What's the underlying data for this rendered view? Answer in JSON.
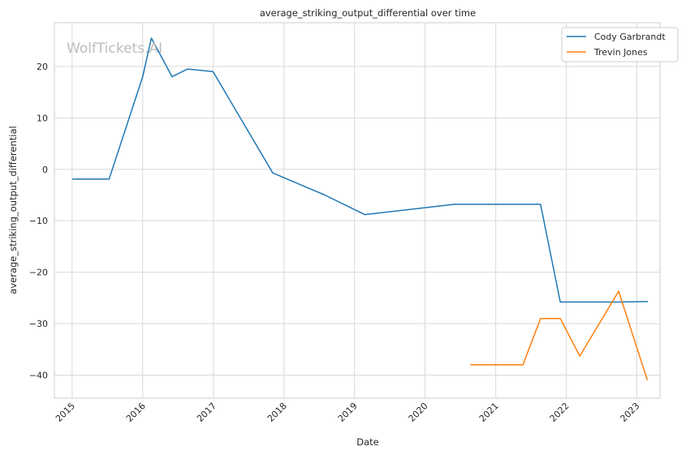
{
  "chart_data": {
    "type": "line",
    "title": "average_striking_output_differential over time",
    "xlabel": "Date",
    "ylabel": "average_striking_output_differential",
    "watermark": "WolfTickets.AI",
    "x_ticks": [
      "2015",
      "2016",
      "2017",
      "2018",
      "2019",
      "2020",
      "2021",
      "2022",
      "2023"
    ],
    "y_ticks": [
      "20",
      "10",
      "0",
      "−10",
      "−20",
      "−30",
      "−40"
    ],
    "y_tick_values": [
      20,
      10,
      0,
      -10,
      -20,
      -30,
      -40
    ],
    "xlim": [
      "2014-10-01",
      "2023-05-01"
    ],
    "ylim": [
      -44.5,
      28.5
    ],
    "grid": true,
    "legend_position": "top-right",
    "series": [
      {
        "name": "Cody Garbrandt",
        "color": "#1f77b4",
        "points": [
          [
            "2015-01-01",
            -1.9
          ],
          [
            "2015-07-11",
            -1.9
          ],
          [
            "2016-01-01",
            18.0
          ],
          [
            "2016-02-15",
            25.5
          ],
          [
            "2016-06-01",
            18.0
          ],
          [
            "2016-08-20",
            19.5
          ],
          [
            "2016-12-30",
            19.0
          ],
          [
            "2017-11-04",
            -0.7
          ],
          [
            "2018-08-01",
            -5.0
          ],
          [
            "2019-02-23",
            -8.8
          ],
          [
            "2020-06-01",
            -6.8
          ],
          [
            "2021-08-21",
            -6.8
          ],
          [
            "2021-12-01",
            -25.8
          ],
          [
            "2022-10-01",
            -25.8
          ],
          [
            "2023-02-28",
            -25.7
          ]
        ]
      },
      {
        "name": "Trevin Jones",
        "color": "#ff7f0e",
        "points": [
          [
            "2020-08-22",
            -38.0
          ],
          [
            "2021-05-22",
            -38.0
          ],
          [
            "2021-08-21",
            -29.0
          ],
          [
            "2021-12-01",
            -29.0
          ],
          [
            "2022-03-12",
            -36.3
          ],
          [
            "2022-09-29",
            -23.7
          ],
          [
            "2023-02-25",
            -41.0
          ]
        ]
      }
    ]
  }
}
